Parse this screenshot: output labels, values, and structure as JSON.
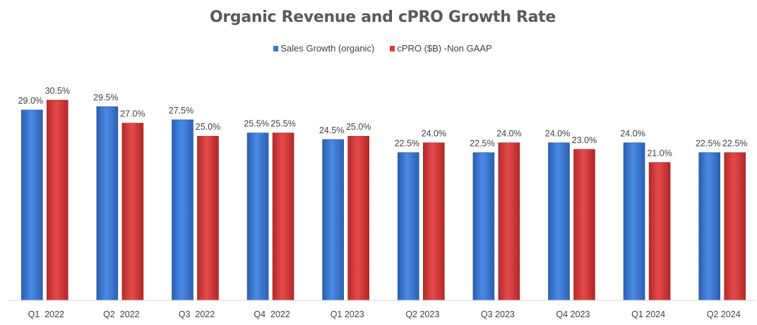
{
  "chart_data": {
    "type": "bar",
    "title": "Organic Revenue and cPRO Growth Rate",
    "categories": [
      "Q1  2022",
      "Q2  2022",
      "Q3  2022",
      "Q4  2022",
      "Q1 2023",
      "Q2 2023",
      "Q3 2023",
      "Q4 2023",
      "Q1 2024",
      "Q2 2024"
    ],
    "series": [
      {
        "name": "Sales Growth (organic)",
        "color": "#3a77d6",
        "values": [
          29.0,
          29.5,
          27.5,
          25.5,
          24.5,
          22.5,
          22.5,
          24.0,
          24.0,
          22.5
        ],
        "labels": [
          "29.0%",
          "29.5%",
          "27.5%",
          "25.5%",
          "24.5%",
          "22.5%",
          "22.5%",
          "24.0%",
          "24.0%",
          "22.5%"
        ]
      },
      {
        "name": "cPRO ($B) -Non GAAP",
        "color": "#d73a3a",
        "values": [
          30.5,
          27.0,
          25.0,
          25.5,
          25.0,
          24.0,
          24.0,
          23.0,
          21.0,
          22.5
        ],
        "labels": [
          "30.5%",
          "27.0%",
          "25.0%",
          "25.5%",
          "25.0%",
          "24.0%",
          "24.0%",
          "23.0%",
          "21.0%",
          "22.5%"
        ]
      }
    ],
    "xlabel": "",
    "ylabel": "",
    "ylim": [
      0,
      30.5
    ],
    "grid": false,
    "legend_position": "top-center"
  }
}
